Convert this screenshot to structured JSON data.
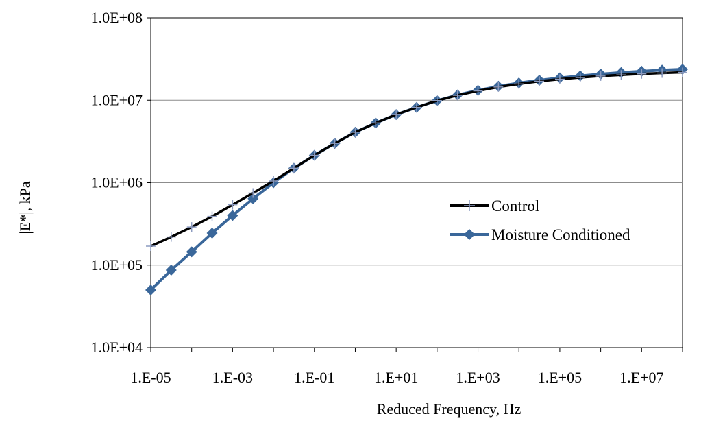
{
  "chart_data": {
    "type": "line",
    "xlabel": "Reduced Frequency, Hz",
    "ylabel": "|E*|, kPa",
    "x_scale": "log",
    "y_scale": "log",
    "xlim": [
      1e-05,
      100000000.0
    ],
    "ylim": [
      10000.0,
      100000000.0
    ],
    "x_ticks": [
      1e-05,
      0.001,
      0.1,
      10.0,
      1000.0,
      100000.0,
      10000000.0
    ],
    "x_tick_labels": [
      "1.E-05",
      "1.E-03",
      "1.E-01",
      "1.E+01",
      "1.E+03",
      "1.E+05",
      "1.E+07"
    ],
    "y_ticks": [
      10000.0,
      100000.0,
      1000000.0,
      10000000.0,
      100000000.0
    ],
    "y_tick_labels": [
      "1.0E+04",
      "1.0E+05",
      "1.0E+06",
      "1.0E+07",
      "1.0E+08"
    ],
    "grid": "horizontal",
    "legend_position": "right-center",
    "series": [
      {
        "name": "Control",
        "color": "#000000",
        "marker": "plus",
        "marker_color": "#8c9bc0",
        "x": [
          1e-05,
          3.16e-05,
          0.0001,
          0.000316,
          0.001,
          0.00316,
          0.01,
          0.0316,
          0.1,
          0.316,
          1.0,
          3.16,
          10.0,
          31.6,
          100.0,
          316.0,
          1000.0,
          3160.0,
          10000.0,
          31600.0,
          100000.0,
          316000.0,
          1000000.0,
          3160000.0,
          10000000.0,
          31600000.0,
          100000000.0
        ],
        "y": [
          170000,
          220000,
          290000,
          390000,
          540000,
          750000,
          1050000,
          1500000,
          2150000,
          3000000,
          4100000,
          5300000,
          6700000,
          8200000,
          9900000,
          11500000,
          13000000,
          14500000,
          15800000,
          17000000,
          18000000,
          18900000,
          19700000,
          20300000,
          20900000,
          21400000,
          21800000
        ]
      },
      {
        "name": "Moisture Conditioned",
        "color": "#3a679a",
        "marker": "diamond",
        "marker_color": "#3a679a",
        "x": [
          1e-05,
          3.16e-05,
          0.0001,
          0.000316,
          0.001,
          0.00316,
          0.01,
          0.0316,
          0.1,
          0.316,
          1.0,
          3.16,
          10.0,
          31.6,
          100.0,
          316.0,
          1000.0,
          3160.0,
          10000.0,
          31600.0,
          100000.0,
          316000.0,
          1000000.0,
          3160000.0,
          10000000.0,
          31600000.0,
          100000000.0
        ],
        "y": [
          50000,
          87000,
          145000,
          245000,
          400000,
          640000,
          1000000,
          1500000,
          2150000,
          3000000,
          4100000,
          5300000,
          6700000,
          8200000,
          9900000,
          11600000,
          13200000,
          14800000,
          16200000,
          17500000,
          18700000,
          19800000,
          20800000,
          21700000,
          22500000,
          23200000,
          23800000
        ]
      }
    ]
  }
}
